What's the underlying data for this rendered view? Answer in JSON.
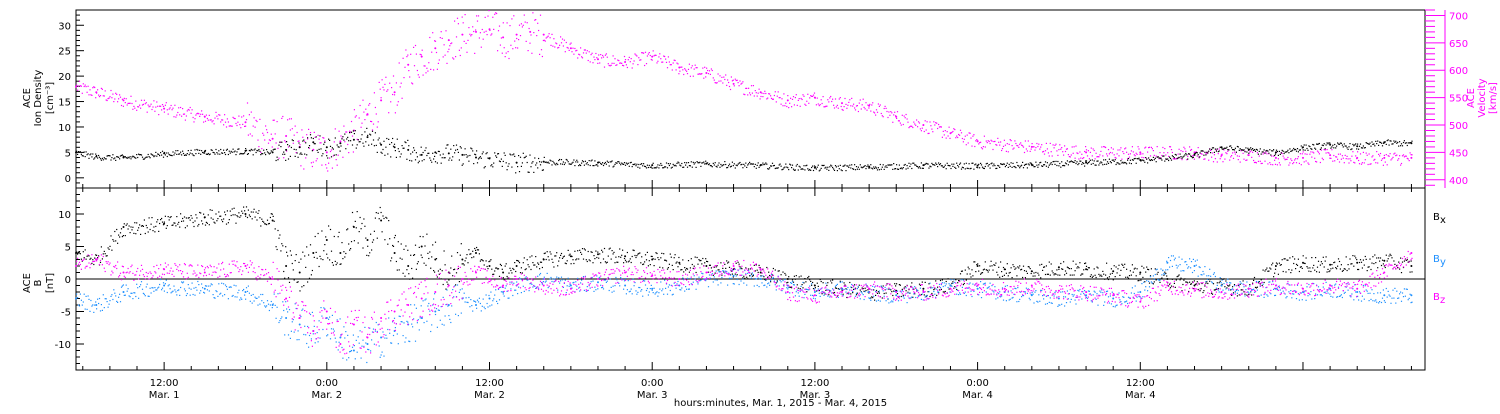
{
  "chart_data": [
    {
      "type": "scatter",
      "panel": "top",
      "ylabel_left": [
        "ACE",
        "Ion Density",
        "[cm⁻³]"
      ],
      "ylabel_right": [
        "ACE",
        "Velocity",
        "[km/s]"
      ],
      "x_unit": "hours since 2015-03-01 00:00",
      "xlim": [
        5.5,
        105
      ],
      "ylim_left": [
        -2,
        33
      ],
      "ylim_right": [
        385,
        710
      ],
      "left_ticks": [
        0,
        5,
        10,
        15,
        20,
        25,
        30
      ],
      "right_ticks": [
        400,
        450,
        500,
        550,
        600,
        650,
        700
      ],
      "series": [
        {
          "axis": "left",
          "color": "#000000",
          "x": [
            5.5,
            7,
            9,
            12,
            15,
            18,
            20,
            21,
            22,
            23,
            24,
            25,
            26,
            27,
            28,
            29,
            30,
            31,
            32,
            33,
            34,
            35,
            36,
            38,
            40,
            44,
            48,
            52,
            56,
            60,
            64,
            68,
            72,
            76,
            80,
            84,
            88,
            90,
            92,
            94,
            96,
            98,
            100,
            102,
            104
          ],
          "y": [
            5,
            4.2,
            4,
            4.8,
            5.2,
            5.3,
            5,
            5.5,
            6,
            7,
            6,
            6.8,
            7.5,
            8,
            6.5,
            6,
            5.5,
            4.5,
            5,
            4.8,
            4.5,
            4,
            3.8,
            3,
            3.2,
            3,
            2.5,
            2.8,
            2.5,
            2,
            2.2,
            2.5,
            2.4,
            2.6,
            3,
            3.5,
            4.5,
            6,
            5.5,
            5,
            6,
            6.5,
            6.2,
            7,
            6.8
          ]
        },
        {
          "axis": "right",
          "color": "#ff00ff",
          "x": [
            5.5,
            7,
            9,
            12,
            15,
            18,
            20,
            21,
            22,
            23,
            24,
            25,
            26,
            27,
            28,
            29,
            30,
            31,
            32,
            33,
            34,
            35,
            36,
            37,
            38,
            39,
            40,
            42,
            44,
            46,
            48,
            50,
            52,
            54,
            56,
            58,
            60,
            62,
            64,
            66,
            68,
            70,
            72,
            76,
            80,
            84,
            88,
            90,
            92,
            94,
            96,
            98,
            100,
            102,
            104
          ],
          "y": [
            570,
            560,
            545,
            530,
            515,
            505,
            475,
            480,
            460,
            455,
            450,
            470,
            490,
            520,
            545,
            560,
            610,
            625,
            640,
            655,
            665,
            670,
            675,
            660,
            665,
            670,
            665,
            640,
            620,
            615,
            625,
            605,
            595,
            575,
            560,
            545,
            550,
            540,
            535,
            515,
            500,
            485,
            470,
            460,
            450,
            450,
            450,
            445,
            445,
            440,
            440,
            445,
            440,
            440,
            440
          ]
        }
      ]
    },
    {
      "type": "scatter",
      "panel": "bottom",
      "ylabel": [
        "ACE",
        "B",
        "[nT]"
      ],
      "x_unit": "hours since 2015-03-01 00:00",
      "xlim": [
        5.5,
        105
      ],
      "ylim": [
        -14,
        14
      ],
      "y_ticks": [
        -10,
        -5,
        0,
        5,
        10
      ],
      "zero_line": true,
      "series": [
        {
          "name": "B_x",
          "color": "#000000",
          "x": [
            5.5,
            7,
            9,
            12,
            15,
            18,
            20,
            21,
            22,
            23,
            24,
            25,
            26,
            27,
            28,
            29,
            30,
            31,
            32,
            33,
            34,
            35,
            36,
            37,
            38,
            40,
            42,
            44,
            46,
            48,
            50,
            52,
            54,
            56,
            58,
            60,
            62,
            64,
            66,
            68,
            70,
            72,
            74,
            76,
            78,
            80,
            82,
            84,
            86,
            88,
            90,
            92,
            94,
            96,
            98,
            100,
            102,
            104
          ],
          "y": [
            4,
            3,
            8,
            8.5,
            9.5,
            10,
            9,
            2,
            1,
            4,
            6,
            4,
            8,
            6,
            9,
            4,
            2,
            5,
            3,
            1,
            3,
            4,
            2,
            1,
            2,
            3,
            3.5,
            3.8,
            3.5,
            3,
            2.5,
            2,
            1.5,
            1,
            0,
            -1,
            -1.5,
            -2,
            -1.8,
            -1.5,
            -1,
            2,
            1.5,
            1.2,
            1.8,
            1.5,
            1.2,
            1,
            0,
            -1,
            -1,
            -1.5,
            2,
            2.5,
            2.2,
            2.5,
            2.8,
            2
          ]
        },
        {
          "name": "B_y",
          "color": "#1e90ff",
          "x": [
            5.5,
            7,
            9,
            12,
            15,
            18,
            20,
            21,
            22,
            23,
            24,
            25,
            26,
            27,
            28,
            29,
            30,
            31,
            32,
            33,
            34,
            35,
            36,
            37,
            38,
            40,
            42,
            44,
            46,
            48,
            50,
            52,
            54,
            56,
            58,
            60,
            62,
            64,
            66,
            68,
            70,
            72,
            74,
            76,
            78,
            80,
            82,
            84,
            86,
            88,
            90,
            92,
            94,
            96,
            98,
            100,
            102,
            104
          ],
          "y": [
            -3,
            -4,
            -2,
            -1,
            -1.5,
            -2,
            -4,
            -6,
            -7,
            -8,
            -6,
            -9,
            -11,
            -10,
            -9,
            -8,
            -7,
            -6,
            -5,
            -4,
            -3,
            -4,
            -3,
            -2,
            -1,
            0,
            -1,
            -0.5,
            -1,
            -1.5,
            -1,
            0,
            0.5,
            0,
            -1,
            -2,
            -1.5,
            -2,
            -2.5,
            -2,
            -1,
            -1.5,
            -2,
            -2.5,
            -3,
            -2.5,
            -3,
            -2,
            2.5,
            2,
            -1,
            -1.5,
            -1.5,
            -2,
            -1.5,
            -2,
            -2.5,
            -2.5
          ]
        },
        {
          "name": "B_z",
          "color": "#ff00ff",
          "x": [
            5.5,
            7,
            9,
            12,
            15,
            18,
            20,
            21,
            22,
            23,
            24,
            25,
            26,
            27,
            28,
            29,
            30,
            31,
            32,
            33,
            34,
            35,
            36,
            37,
            38,
            40,
            42,
            44,
            46,
            48,
            50,
            52,
            54,
            56,
            58,
            60,
            62,
            64,
            66,
            68,
            70,
            72,
            74,
            76,
            78,
            80,
            82,
            84,
            86,
            88,
            90,
            92,
            94,
            96,
            98,
            100,
            102,
            104
          ],
          "y": [
            2,
            3,
            1,
            1.5,
            1,
            2,
            0,
            -3,
            -6,
            -8,
            -5,
            -10,
            -7,
            -9,
            -6,
            -5,
            -4,
            -3,
            -2,
            -1,
            0,
            1,
            0,
            -1,
            0,
            -1,
            -1.5,
            0,
            1,
            0.5,
            0,
            1,
            2,
            1.5,
            -2,
            -2.5,
            -2,
            -1.5,
            -2,
            -2,
            -1.5,
            -1,
            -1.5,
            -1,
            -1.8,
            -2,
            -2.5,
            -3.5,
            -1,
            -1.5,
            -2,
            -1.5,
            -1,
            -1.5,
            -1,
            -1.5,
            1,
            4
          ]
        }
      ],
      "legend": [
        {
          "label": "B",
          "sub": "x",
          "color": "#000000"
        },
        {
          "label": "B",
          "sub": "y",
          "color": "#1e90ff"
        },
        {
          "label": "B",
          "sub": "z",
          "color": "#ff00ff"
        }
      ]
    }
  ],
  "x_ticks": [
    {
      "hour": 12,
      "time": "12:00",
      "date": "Mar. 1"
    },
    {
      "hour": 24,
      "time": "0:00",
      "date": "Mar. 2"
    },
    {
      "hour": 36,
      "time": "12:00",
      "date": "Mar. 2"
    },
    {
      "hour": 48,
      "time": "0:00",
      "date": "Mar. 3"
    },
    {
      "hour": 60,
      "time": "12:00",
      "date": "Mar. 3"
    },
    {
      "hour": 72,
      "time": "0:00",
      "date": "Mar. 4"
    },
    {
      "hour": 84,
      "time": "12:00",
      "date": "Mar. 4"
    }
  ],
  "xlabel": "hours:minutes, Mar.  1, 2015 - Mar.  4, 2015"
}
